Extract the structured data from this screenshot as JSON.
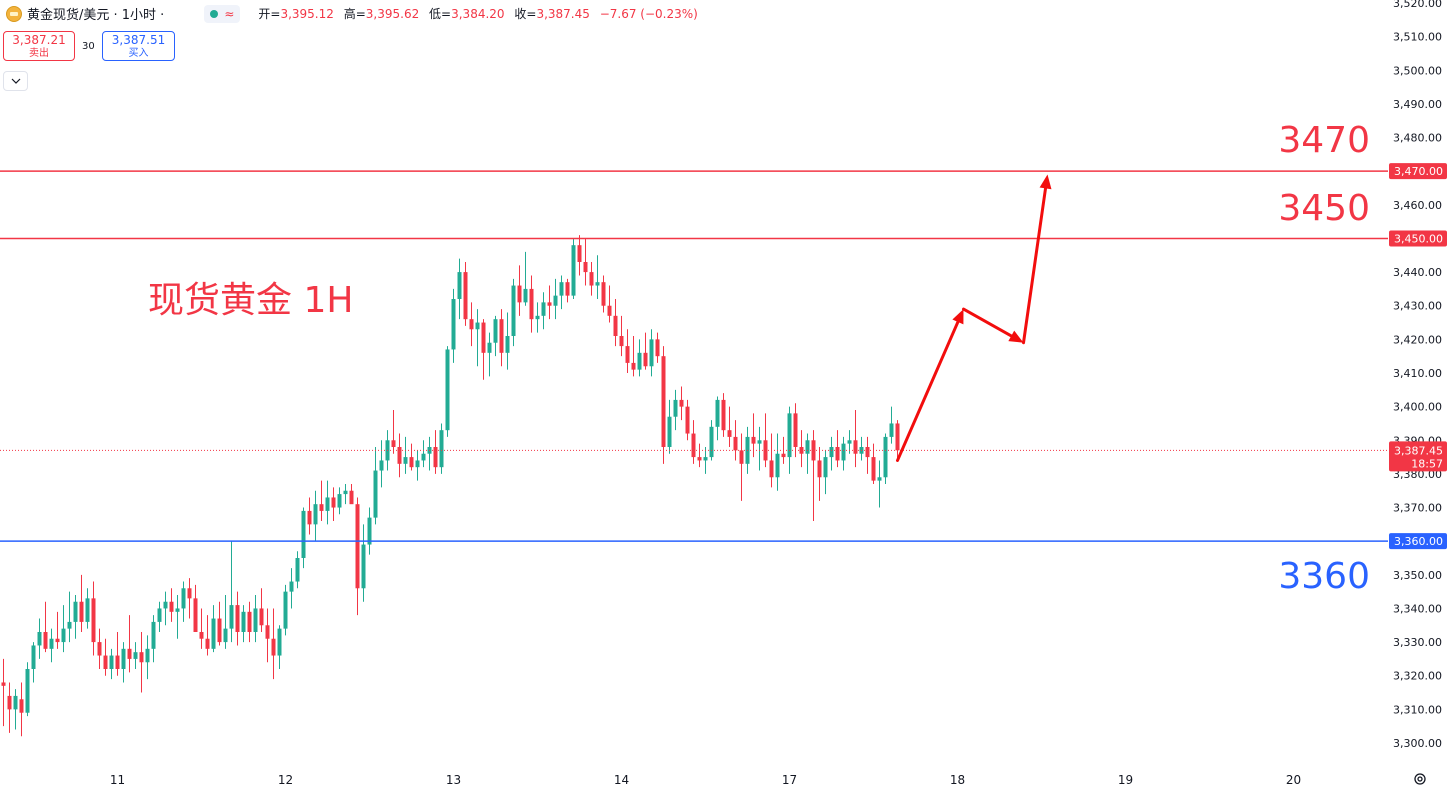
{
  "header": {
    "symbol": "黄金现货/美元 · 1小时 ·",
    "live_wave": "≈",
    "open_label": "开=",
    "open": "3,395.12",
    "high_label": "高=",
    "high": "3,395.62",
    "low_label": "低=",
    "low": "3,384.20",
    "close_label": "收=",
    "close": "3,387.45",
    "change": "−7.67 (−0.23%)"
  },
  "trade": {
    "sell_price": "3,387.21",
    "sell_label": "卖出",
    "spread": "30",
    "buy_price": "3,387.51",
    "buy_label": "买入"
  },
  "icons": {
    "collapse": "chevron-down-icon",
    "settings": "gear-icon"
  },
  "colors": {
    "up": "#22ab94",
    "down": "#f23645",
    "resistance": "#f23645",
    "support": "#2962ff",
    "arrow": "#f20d0d"
  },
  "annotations": {
    "title": "现货黄金 1H",
    "label_3470": "3470",
    "label_3450": "3450",
    "label_3360": "3360"
  },
  "chart_data": {
    "type": "candlestick",
    "title": "现货黄金 1H",
    "ylim": [
      3295,
      3522
    ],
    "yticks": [
      3300,
      3310,
      3320,
      3330,
      3340,
      3350,
      3360,
      3370,
      3380,
      3390,
      3400,
      3410,
      3420,
      3430,
      3440,
      3450,
      3460,
      3470,
      3480,
      3490,
      3500,
      3510,
      3520
    ],
    "ytick_labels": [
      "3,300.00",
      "3,310.00",
      "3,320.00",
      "3,330.00",
      "3,340.00",
      "3,350.00",
      "3,360.00",
      "3,370.00",
      "3,380.00",
      "3,390.00",
      "3,400.00",
      "3,410.00",
      "3,420.00",
      "3,430.00",
      "3,440.00",
      "3,450.00",
      "3,460.00",
      "3,470.00",
      "3,480.00",
      "3,490.00",
      "3,500.00",
      "3,510.00",
      "3,520.00"
    ],
    "x_ticks": [
      "11",
      "12",
      "13",
      "14",
      "17",
      "18",
      "19",
      "20"
    ],
    "x_tick_index": [
      19,
      47,
      75,
      103,
      131,
      159,
      187,
      215
    ],
    "candles": [
      [
        3318,
        3325,
        3305,
        3317
      ],
      [
        3314,
        3318,
        3303,
        3310
      ],
      [
        3310,
        3316,
        3304,
        3314
      ],
      [
        3313,
        3318,
        3302,
        3309
      ],
      [
        3309,
        3324,
        3308,
        3322
      ],
      [
        3322,
        3330,
        3318,
        3329
      ],
      [
        3329,
        3337,
        3325,
        3333
      ],
      [
        3333,
        3342,
        3327,
        3328
      ],
      [
        3328,
        3334,
        3324,
        3331
      ],
      [
        3331,
        3339,
        3328,
        3330
      ],
      [
        3330,
        3341,
        3327,
        3334
      ],
      [
        3334,
        3345,
        3330,
        3336
      ],
      [
        3336,
        3344,
        3331,
        3342
      ],
      [
        3342,
        3350,
        3333,
        3336
      ],
      [
        3336,
        3346,
        3334,
        3343
      ],
      [
        3343,
        3348,
        3326,
        3330
      ],
      [
        3330,
        3334,
        3322,
        3326
      ],
      [
        3326,
        3331,
        3320,
        3322
      ],
      [
        3322,
        3328,
        3319,
        3326
      ],
      [
        3326,
        3333,
        3320,
        3322
      ],
      [
        3322,
        3330,
        3318,
        3328
      ],
      [
        3328,
        3338,
        3321,
        3325
      ],
      [
        3325,
        3330,
        3322,
        3327
      ],
      [
        3327,
        3333,
        3315,
        3324
      ],
      [
        3324,
        3332,
        3319,
        3328
      ],
      [
        3328,
        3338,
        3324,
        3336
      ],
      [
        3336,
        3342,
        3333,
        3340
      ],
      [
        3340,
        3345,
        3335,
        3342
      ],
      [
        3342,
        3346,
        3336,
        3339
      ],
      [
        3339,
        3344,
        3331,
        3340
      ],
      [
        3340,
        3348,
        3336,
        3346
      ],
      [
        3346,
        3349,
        3337,
        3343
      ],
      [
        3343,
        3347,
        3333,
        3333
      ],
      [
        3333,
        3340,
        3328,
        3331
      ],
      [
        3331,
        3338,
        3326,
        3328
      ],
      [
        3328,
        3341,
        3327,
        3337
      ],
      [
        3337,
        3342,
        3329,
        3330
      ],
      [
        3330,
        3344,
        3328,
        3334
      ],
      [
        3334,
        3360,
        3330,
        3341
      ],
      [
        3341,
        3345,
        3329,
        3333
      ],
      [
        3333,
        3341,
        3330,
        3339
      ],
      [
        3339,
        3342,
        3330,
        3333
      ],
      [
        3333,
        3344,
        3330,
        3340
      ],
      [
        3340,
        3346,
        3333,
        3335
      ],
      [
        3335,
        3340,
        3324,
        3331
      ],
      [
        3331,
        3340,
        3319,
        3326
      ],
      [
        3326,
        3335,
        3322,
        3334
      ],
      [
        3334,
        3347,
        3332,
        3345
      ],
      [
        3345,
        3352,
        3340,
        3348
      ],
      [
        3348,
        3357,
        3346,
        3355
      ],
      [
        3355,
        3370,
        3352,
        3369
      ],
      [
        3369,
        3373,
        3362,
        3365
      ],
      [
        3365,
        3375,
        3360,
        3371
      ],
      [
        3371,
        3378,
        3366,
        3369
      ],
      [
        3369,
        3378,
        3365,
        3373
      ],
      [
        3373,
        3376,
        3366,
        3370
      ],
      [
        3370,
        3376,
        3368,
        3374
      ],
      [
        3374,
        3377,
        3371,
        3375
      ],
      [
        3375,
        3377,
        3373,
        3371
      ],
      [
        3371,
        3373,
        3338,
        3346
      ],
      [
        3346,
        3365,
        3342,
        3359
      ],
      [
        3359,
        3370,
        3356,
        3367
      ],
      [
        3367,
        3388,
        3365,
        3381
      ],
      [
        3381,
        3390,
        3376,
        3384
      ],
      [
        3384,
        3393,
        3381,
        3390
      ],
      [
        3390,
        3399,
        3386,
        3388
      ],
      [
        3388,
        3392,
        3379,
        3383
      ],
      [
        3383,
        3391,
        3380,
        3385
      ],
      [
        3385,
        3389,
        3381,
        3382
      ],
      [
        3382,
        3387,
        3378,
        3384
      ],
      [
        3384,
        3390,
        3382,
        3386
      ],
      [
        3386,
        3391,
        3381,
        3388
      ],
      [
        3388,
        3393,
        3380,
        3382
      ],
      [
        3382,
        3395,
        3380,
        3393
      ],
      [
        3393,
        3418,
        3391,
        3417
      ],
      [
        3417,
        3435,
        3413,
        3432
      ],
      [
        3432,
        3444,
        3426,
        3440
      ],
      [
        3440,
        3443,
        3424,
        3426
      ],
      [
        3426,
        3431,
        3418,
        3423
      ],
      [
        3423,
        3429,
        3412,
        3425
      ],
      [
        3425,
        3426,
        3408,
        3416
      ],
      [
        3416,
        3422,
        3409,
        3419
      ],
      [
        3419,
        3427,
        3415,
        3426
      ],
      [
        3426,
        3429,
        3412,
        3416
      ],
      [
        3416,
        3428,
        3411,
        3421
      ],
      [
        3421,
        3438,
        3418,
        3436
      ],
      [
        3436,
        3442,
        3427,
        3431
      ],
      [
        3431,
        3446,
        3430,
        3435
      ],
      [
        3435,
        3439,
        3422,
        3426
      ],
      [
        3426,
        3431,
        3422,
        3427
      ],
      [
        3427,
        3434,
        3423,
        3431
      ],
      [
        3431,
        3436,
        3426,
        3430
      ],
      [
        3430,
        3438,
        3426,
        3433
      ],
      [
        3433,
        3439,
        3429,
        3437
      ],
      [
        3437,
        3438,
        3431,
        3433
      ],
      [
        3433,
        3450,
        3432,
        3448
      ],
      [
        3448,
        3451,
        3439,
        3443
      ],
      [
        3443,
        3450,
        3436,
        3440
      ],
      [
        3440,
        3443,
        3433,
        3436
      ],
      [
        3436,
        3445,
        3432,
        3437
      ],
      [
        3437,
        3439,
        3428,
        3430
      ],
      [
        3430,
        3436,
        3425,
        3427
      ],
      [
        3427,
        3432,
        3418,
        3421
      ],
      [
        3421,
        3427,
        3415,
        3418
      ],
      [
        3418,
        3423,
        3410,
        3413
      ],
      [
        3413,
        3421,
        3409,
        3411
      ],
      [
        3411,
        3420,
        3409,
        3416
      ],
      [
        3416,
        3422,
        3411,
        3412
      ],
      [
        3412,
        3423,
        3409,
        3420
      ],
      [
        3420,
        3422,
        3413,
        3415
      ],
      [
        3415,
        3418,
        3383,
        3388
      ],
      [
        3388,
        3402,
        3386,
        3397
      ],
      [
        3397,
        3405,
        3393,
        3402
      ],
      [
        3402,
        3406,
        3396,
        3400
      ],
      [
        3400,
        3402,
        3390,
        3392
      ],
      [
        3392,
        3396,
        3383,
        3385
      ],
      [
        3385,
        3389,
        3382,
        3384
      ],
      [
        3384,
        3388,
        3380,
        3385
      ],
      [
        3385,
        3396,
        3384,
        3394
      ],
      [
        3394,
        3403,
        3390,
        3402
      ],
      [
        3402,
        3404,
        3391,
        3393
      ],
      [
        3393,
        3400,
        3388,
        3391
      ],
      [
        3391,
        3396,
        3384,
        3387
      ],
      [
        3387,
        3392,
        3372,
        3383
      ],
      [
        3383,
        3394,
        3380,
        3391
      ],
      [
        3391,
        3398,
        3385,
        3389
      ],
      [
        3389,
        3394,
        3381,
        3390
      ],
      [
        3390,
        3398,
        3382,
        3384
      ],
      [
        3384,
        3392,
        3376,
        3379
      ],
      [
        3379,
        3392,
        3375,
        3386
      ],
      [
        3386,
        3391,
        3383,
        3385
      ],
      [
        3385,
        3400,
        3380,
        3398
      ],
      [
        3398,
        3401,
        3385,
        3388
      ],
      [
        3388,
        3393,
        3382,
        3386
      ],
      [
        3386,
        3392,
        3380,
        3390
      ],
      [
        3390,
        3393,
        3366,
        3384
      ],
      [
        3384,
        3388,
        3372,
        3379
      ],
      [
        3379,
        3387,
        3374,
        3385
      ],
      [
        3385,
        3391,
        3381,
        3388
      ],
      [
        3388,
        3393,
        3382,
        3384
      ],
      [
        3384,
        3391,
        3381,
        3389
      ],
      [
        3389,
        3393,
        3386,
        3390
      ],
      [
        3390,
        3399,
        3382,
        3386
      ],
      [
        3386,
        3391,
        3384,
        3388
      ],
      [
        3388,
        3391,
        3380,
        3385
      ],
      [
        3385,
        3389,
        3377,
        3378
      ],
      [
        3378,
        3384,
        3370,
        3379
      ],
      [
        3379,
        3392,
        3377,
        3391
      ],
      [
        3391,
        3400,
        3389,
        3395
      ],
      [
        3395,
        3396,
        3384,
        3387
      ]
    ],
    "last_price": "3,387.45",
    "countdown": "18:57",
    "horizontal_lines": [
      {
        "value": 3470,
        "label": "3,470.00",
        "color": "#f23645"
      },
      {
        "value": 3450,
        "label": "3,450.00",
        "color": "#f23645"
      },
      {
        "value": 3360,
        "label": "3,360.00",
        "color": "#2962ff"
      }
    ],
    "projection_path": [
      [
        149,
        3384
      ],
      [
        160,
        3429
      ],
      [
        170,
        3419
      ],
      [
        174,
        3469
      ]
    ]
  }
}
